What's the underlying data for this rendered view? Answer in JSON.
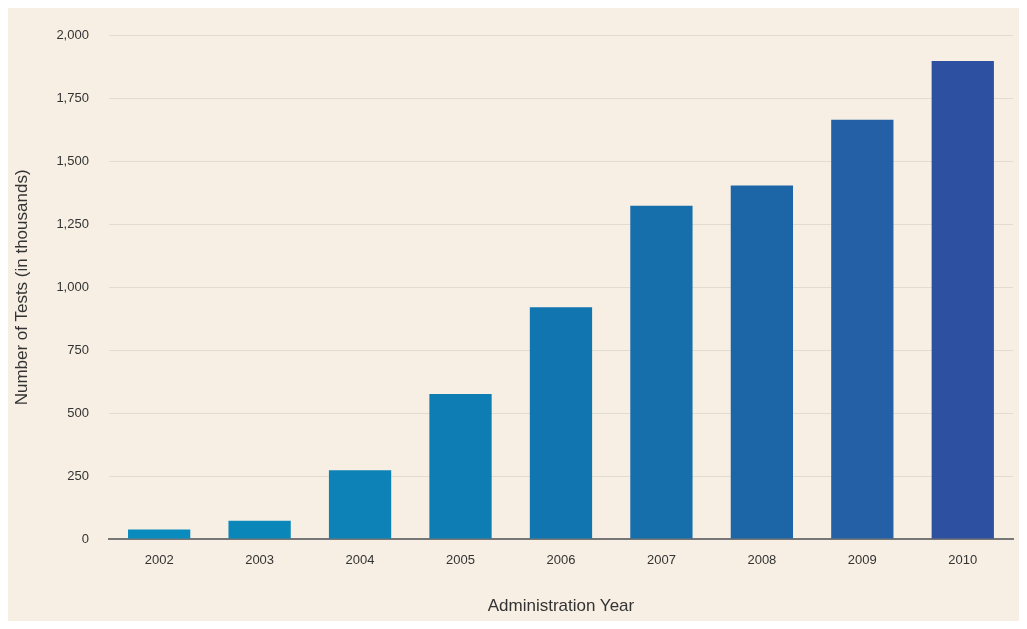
{
  "chart_data": {
    "type": "bar",
    "xlabel": "Administration Year",
    "ylabel": "Number of Tests (in thousands)",
    "categories": [
      "2002",
      "2003",
      "2004",
      "2005",
      "2006",
      "2007",
      "2008",
      "2009",
      "2010"
    ],
    "values": [
      38,
      73,
      273,
      576,
      921,
      1325,
      1405,
      1666,
      1900
    ],
    "colors": [
      "#0a8bbd",
      "#0a86b9",
      "#0c82b6",
      "#0e7db4",
      "#1176b0",
      "#166eab",
      "#1c66a8",
      "#2360a6",
      "#2d50a0"
    ],
    "ylim": [
      0,
      2000
    ],
    "yticks": [
      0,
      {
        "value": 250,
        "label": "250"
      },
      {
        "value": 500,
        "label": "500"
      },
      {
        "value": 750,
        "label": "750"
      },
      {
        "value": 1000,
        "label": "1,000"
      },
      {
        "value": 1250,
        "label": "1,250"
      },
      {
        "value": 1500,
        "label": "1,500"
      },
      {
        "value": 1750,
        "label": "1,750"
      },
      {
        "value": 2000,
        "label": "2,000"
      }
    ],
    "grid": "y",
    "legend": false
  }
}
